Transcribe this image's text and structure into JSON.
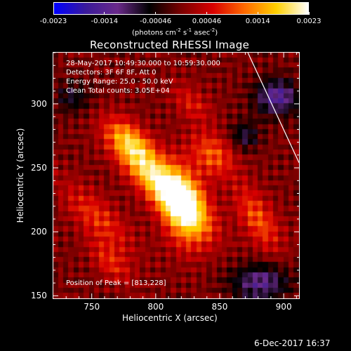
{
  "colorbar": {
    "labels": [
      "-0.0023",
      "-0.0014",
      "-0.00046",
      "0.00046",
      "0.0014",
      "0.0023"
    ],
    "units_prefix": "(photons cm",
    "units_exp1": "-2",
    "units_mid": " s",
    "units_exp2": "-1",
    "units_mid2": " asec",
    "units_exp3": "-2",
    "units_suffix": ")",
    "colors": [
      "#0000ff",
      "#3a1a9a",
      "#6a2a8a",
      "#000000",
      "#7a0000",
      "#d80000",
      "#ff6a00",
      "#ffd000",
      "#ffffff"
    ]
  },
  "title": "Reconstructed RHESSI Image",
  "info": {
    "line1": "28-May-2017 10:49:30.000 to 10:59:30.000",
    "line2": "Detectors: 3F 6F 8F, Att 0",
    "line3": "Energy Range: 25.0 - 50.0 keV",
    "line4": "Clean     Total counts: 3.05E+04"
  },
  "peak_label": "Position of Peak = [813,228]",
  "timestamp": "6-Dec-2017 16:37",
  "chart_data": {
    "type": "heatmap",
    "title": "Reconstructed RHESSI Image",
    "xlabel": "Heliocentric X (arcsec)",
    "ylabel": "Heliocentric Y (arcsec)",
    "xlim": [
      720,
      912
    ],
    "ylim": [
      148,
      340
    ],
    "xticks": [
      750,
      800,
      850,
      900
    ],
    "yticks": [
      150,
      200,
      250,
      300
    ],
    "colorbar_range": [
      -0.0023,
      0.0023
    ],
    "colorbar_unit": "photons cm^-2 s^-1 asec^-2",
    "peak_position": [
      813,
      228
    ],
    "total_counts": "3.05E+04",
    "energy_range_keV": [
      25.0,
      50.0
    ],
    "detectors": "3F 6F 8F",
    "attenuator": 0,
    "sources": [
      {
        "x": 806,
        "y": 236,
        "sx": 30,
        "sy": 10,
        "angle_deg": -45,
        "amp": 0.002
      },
      {
        "x": 822,
        "y": 220,
        "sx": 12,
        "sy": 22,
        "angle_deg": 10,
        "amp": 0.0018
      },
      {
        "x": 780,
        "y": 270,
        "sx": 16,
        "sy": 9,
        "angle_deg": -45,
        "amp": 0.0013
      },
      {
        "x": 845,
        "y": 260,
        "sx": 14,
        "sy": 10,
        "angle_deg": -45,
        "amp": 0.001
      },
      {
        "x": 880,
        "y": 210,
        "sx": 20,
        "sy": 9,
        "angle_deg": -60,
        "amp": 0.001
      },
      {
        "x": 755,
        "y": 210,
        "sx": 26,
        "sy": 10,
        "angle_deg": -45,
        "amp": 0.0008
      },
      {
        "x": 765,
        "y": 175,
        "sx": 14,
        "sy": 7,
        "angle_deg": -45,
        "amp": 0.0007
      },
      {
        "x": 828,
        "y": 300,
        "sx": 14,
        "sy": 8,
        "angle_deg": -45,
        "amp": 0.0006
      },
      {
        "x": 895,
        "y": 305,
        "sx": 12,
        "sy": 10,
        "angle_deg": 0,
        "amp": -0.0014
      },
      {
        "x": 882,
        "y": 160,
        "sx": 16,
        "sy": 10,
        "angle_deg": 0,
        "amp": -0.0012
      },
      {
        "x": 735,
        "y": 305,
        "sx": 10,
        "sy": 9,
        "angle_deg": 0,
        "amp": -0.0007
      },
      {
        "x": 870,
        "y": 275,
        "sx": 8,
        "sy": 8,
        "angle_deg": 0,
        "amp": -0.0008
      }
    ],
    "limb_line": {
      "x": [
        872,
        912
      ],
      "y": [
        340,
        254
      ]
    }
  }
}
